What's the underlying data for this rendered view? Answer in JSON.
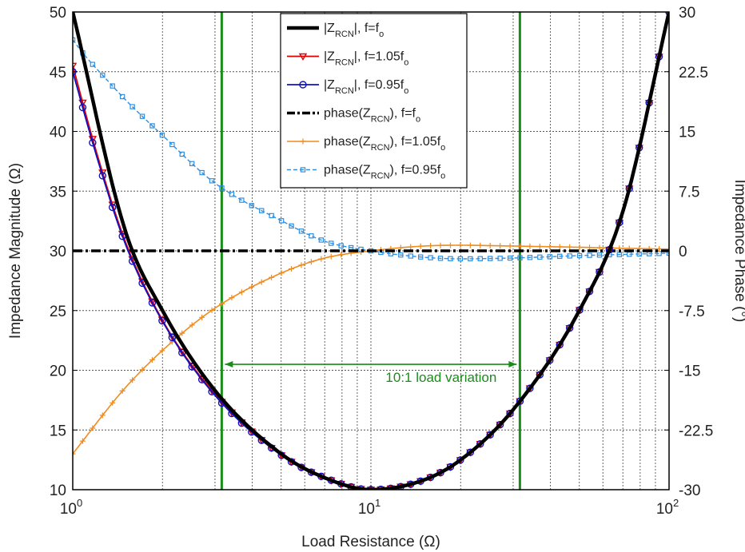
{
  "chart_data": {
    "type": "line",
    "xlabel": "Load Resistance (Ω)",
    "ylabel_left": "Impedance Magnitude (Ω)",
    "ylabel_right": "Impedance Phase (°)",
    "xscale": "log",
    "xlim": [
      1,
      100
    ],
    "ylim_left": [
      10,
      50
    ],
    "ylim_right": [
      -30,
      30
    ],
    "grid": true,
    "legend_placement": "top-center",
    "x_tick_labels": [
      "10^0",
      "10^1",
      "10^2"
    ],
    "y_left_ticks": [
      10,
      15,
      20,
      25,
      30,
      35,
      40,
      45,
      50
    ],
    "y_right_ticks": [
      -30,
      -22.5,
      -15,
      -7.5,
      0,
      7.5,
      15,
      22.5,
      30
    ],
    "x_tick_text": [
      {
        "base": "10",
        "exp": "0"
      },
      {
        "base": "10",
        "exp": "1"
      },
      {
        "base": "10",
        "exp": "2"
      }
    ],
    "y_left_tick_text": [
      "10",
      "15",
      "20",
      "25",
      "30",
      "35",
      "40",
      "45",
      "50"
    ],
    "y_right_tick_text": [
      "-30",
      "-22.5",
      "-15",
      "-7.5",
      "0",
      "7.5",
      "15",
      "22.5",
      "30"
    ],
    "legend": [
      {
        "main": "|Z",
        "sub": "RCN",
        "mid": "|, f=f",
        "sub2": "o",
        "tail": ""
      },
      {
        "main": "|Z",
        "sub": "RCN",
        "mid": "|, f=1.05f",
        "sub2": "o",
        "tail": ""
      },
      {
        "main": "|Z",
        "sub": "RCN",
        "mid": "|, f=0.95f",
        "sub2": "o",
        "tail": ""
      },
      {
        "main": "phase(Z",
        "sub": "RCN",
        "mid": "), f=f",
        "sub2": "o",
        "tail": ""
      },
      {
        "main": "phase(Z",
        "sub": "RCN",
        "mid": "), f=1.05f",
        "sub2": "o",
        "tail": ""
      },
      {
        "main": "phase(Z",
        "sub": "RCN",
        "mid": "), f=0.95f",
        "sub2": "o",
        "tail": ""
      }
    ],
    "vertical_markers_x": [
      3.16,
      31.6
    ],
    "annotation": {
      "text": "10:1 load variation",
      "x_start": 3.16,
      "x_end": 31.6,
      "y": 20.5
    },
    "series": [
      {
        "axis": "left",
        "style": "magnitude",
        "color": "#000000",
        "marker": "none",
        "x": [
          1,
          1.5,
          2,
          3,
          5,
          7,
          10,
          15,
          20,
          30,
          50,
          70,
          100
        ],
        "y": [
          50,
          31.7,
          25,
          18.3,
          13,
          11,
          10,
          10.8,
          12.5,
          16.7,
          25,
          33.3,
          50
        ]
      },
      {
        "axis": "left",
        "style": "magnitude",
        "color": "#e00000",
        "marker": "triangle-down",
        "x": [
          1,
          1.2,
          1.5,
          2,
          3,
          5,
          7,
          10,
          15,
          20,
          30,
          50,
          70,
          100
        ],
        "y": [
          45.5,
          38.3,
          30.8,
          24.2,
          18,
          12.9,
          11,
          10,
          10.8,
          12.5,
          16.7,
          25,
          33.3,
          50
        ]
      },
      {
        "axis": "left",
        "style": "magnitude",
        "color": "#1010c0",
        "marker": "circle",
        "x": [
          1,
          1.2,
          1.5,
          2,
          3,
          5,
          7,
          10,
          15,
          20,
          30,
          50,
          70,
          100
        ],
        "y": [
          45,
          38,
          30.6,
          24.1,
          17.9,
          12.9,
          11,
          10,
          10.8,
          12.5,
          16.7,
          25,
          33.3,
          50
        ]
      },
      {
        "axis": "right",
        "style": "phase-nominal",
        "color": "#000000",
        "marker": "none",
        "x": [
          1,
          100
        ],
        "y": [
          0,
          0
        ]
      },
      {
        "axis": "right",
        "style": "phase",
        "color": "#f08c1e",
        "marker": "plus",
        "x": [
          1,
          1.1,
          1.3,
          1.5,
          2,
          3,
          5,
          7,
          10,
          15,
          20,
          30,
          50,
          70,
          100
        ],
        "y": [
          -25.5,
          -23.5,
          -20,
          -17.2,
          -12.5,
          -7.2,
          -2.8,
          -0.9,
          0,
          0.6,
          0.7,
          0.6,
          0.45,
          0.32,
          0.22
        ]
      },
      {
        "axis": "right",
        "style": "phase",
        "color": "#2f8fe0",
        "marker": "square",
        "x": [
          1,
          1.1,
          1.3,
          1.5,
          2,
          3,
          5,
          7,
          10,
          15,
          20,
          30,
          50,
          70,
          100
        ],
        "y": [
          26.5,
          24.5,
          21.5,
          19,
          14.5,
          8.5,
          3.8,
          1.2,
          0,
          -0.8,
          -1,
          -0.9,
          -0.6,
          -0.45,
          -0.3
        ]
      }
    ]
  }
}
